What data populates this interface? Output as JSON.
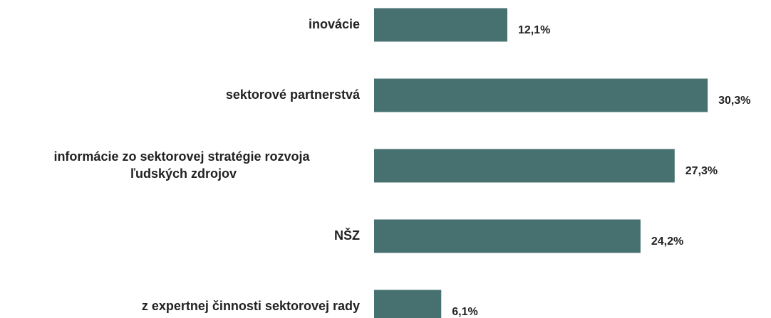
{
  "chart_data": {
    "type": "bar",
    "orientation": "horizontal",
    "categories": [
      "inovácie",
      "sektorové partnerstvá",
      "informácie zo sektorovej stratégie rozvoja ľudských zdrojov",
      "NŠZ",
      "z expertnej činnosti sektorovej rady"
    ],
    "values": [
      12.1,
      30.3,
      27.3,
      24.2,
      6.1
    ],
    "value_labels": [
      "12,1%",
      "30,3%",
      "27,3%",
      "24,2%",
      "6,1%"
    ],
    "color": "#477070"
  }
}
